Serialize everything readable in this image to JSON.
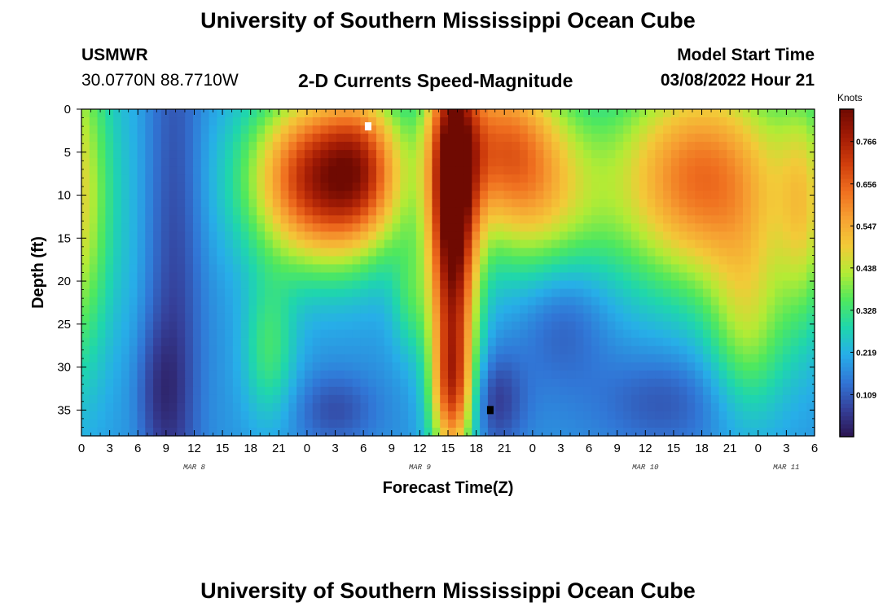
{
  "header": {
    "title": "University of Southern Mississippi Ocean Cube",
    "station_name": "USMWR",
    "station_coords": "30.0770N  88.7710W",
    "plot_subtitle": "2-D Currents Speed-Magnitude",
    "model_start_label": "Model Start Time",
    "model_start_value": "03/08/2022 Hour 21"
  },
  "footer": {
    "title": "University of Southern Mississippi Ocean Cube"
  },
  "chart_data": {
    "type": "heatmap",
    "title": "2-D Currents Speed-Magnitude",
    "xlabel": "Forecast Time(Z)",
    "ylabel": "Depth (ft)",
    "units": "Knots",
    "x_ticks": [
      "0",
      "3",
      "6",
      "9",
      "12",
      "15",
      "18",
      "21",
      "0",
      "3",
      "6",
      "9",
      "12",
      "15",
      "18",
      "21",
      "0",
      "3",
      "6",
      "9",
      "12",
      "15",
      "18",
      "21",
      "0",
      "3",
      "6"
    ],
    "x_hours": [
      0,
      3,
      6,
      9,
      12,
      15,
      18,
      21,
      24,
      27,
      30,
      33,
      36,
      39,
      42,
      45,
      48,
      51,
      54,
      57,
      60,
      63,
      66,
      69,
      72,
      75,
      78
    ],
    "date_labels": [
      {
        "text": "MAR 8",
        "hour": 12
      },
      {
        "text": "MAR 9",
        "hour": 36
      },
      {
        "text": "MAR 10",
        "hour": 60
      },
      {
        "text": "MAR 11",
        "hour": 75
      }
    ],
    "y_ticks": [
      "0",
      "5",
      "10",
      "15",
      "20",
      "25",
      "30",
      "35"
    ],
    "y_values": [
      0,
      5,
      10,
      15,
      20,
      25,
      30,
      35
    ],
    "xlim": [
      0,
      78
    ],
    "ylim": [
      38,
      0
    ],
    "colorbar": {
      "label": "Knots",
      "ticks": [
        "0.766",
        "0.656",
        "0.547",
        "0.438",
        "0.328",
        "0.219",
        "0.109"
      ],
      "tick_values": [
        0.766,
        0.656,
        0.547,
        0.438,
        0.328,
        0.219,
        0.109
      ],
      "min": 0.0,
      "max": 0.85,
      "colors": [
        "#2b1450",
        "#35409a",
        "#3176d6",
        "#27aee8",
        "#1fd6ad",
        "#4fe85e",
        "#b3eb35",
        "#f3ca38",
        "#f6a132",
        "#ef6e1f",
        "#cf3d0c",
        "#a21b05",
        "#6f0a02"
      ]
    },
    "markers": [
      {
        "hour": 30.5,
        "depth": 2,
        "color": "#ffffff"
      },
      {
        "hour": 43.5,
        "depth": 35,
        "color": "#000000"
      }
    ],
    "speed_field": {
      "background": 0.18,
      "blobs": [
        {
          "hour": -1,
          "depth": 10,
          "sx": 3,
          "sy": 14,
          "amp": 0.32
        },
        {
          "hour": 5.5,
          "depth": 20,
          "sx": 1.2,
          "sy": 30,
          "amp": 0.02
        },
        {
          "hour": 10,
          "depth": 20,
          "sx": 2.0,
          "sy": 30,
          "amp": -0.1
        },
        {
          "hour": 26,
          "depth": 8,
          "sx": 5.5,
          "sy": 7,
          "amp": 0.62
        },
        {
          "hour": 30,
          "depth": 6,
          "sx": 2.5,
          "sy": 6,
          "amp": 0.15
        },
        {
          "hour": 20,
          "depth": 28,
          "sx": 2.0,
          "sy": 6,
          "amp": 0.15
        },
        {
          "hour": 35,
          "depth": 22,
          "sx": 1.5,
          "sy": 5,
          "amp": 0.12
        },
        {
          "hour": 39.5,
          "depth": 14,
          "sx": 1.8,
          "sy": 16,
          "amp": 0.66
        },
        {
          "hour": 39.5,
          "depth": 33,
          "sx": 1.5,
          "sy": 5,
          "amp": 0.25
        },
        {
          "hour": 44.5,
          "depth": 4,
          "sx": 4.5,
          "sy": 7,
          "amp": 0.4
        },
        {
          "hour": 49.5,
          "depth": 12,
          "sx": 4.5,
          "sy": 8,
          "amp": 0.22
        },
        {
          "hour": 66,
          "depth": 8,
          "sx": 7,
          "sy": 9,
          "amp": 0.46
        },
        {
          "hour": 71,
          "depth": 25,
          "sx": 3,
          "sy": 8,
          "amp": 0.2
        },
        {
          "hour": 77,
          "depth": 12,
          "sx": 2,
          "sy": 10,
          "amp": 0.2
        },
        {
          "hour": 51,
          "depth": 23,
          "sx": 3.5,
          "sy": 6,
          "amp": -0.12
        },
        {
          "hour": 44,
          "depth": 34,
          "sx": 2.2,
          "sy": 4,
          "amp": -0.12
        },
        {
          "hour": 27,
          "depth": 35,
          "sx": 3,
          "sy": 3,
          "amp": -0.09
        },
        {
          "hour": 8,
          "depth": 33,
          "sx": 2,
          "sy": 6,
          "amp": -0.08
        },
        {
          "hour": 62,
          "depth": 34,
          "sx": 5,
          "sy": 4,
          "amp": -0.08
        }
      ]
    }
  }
}
